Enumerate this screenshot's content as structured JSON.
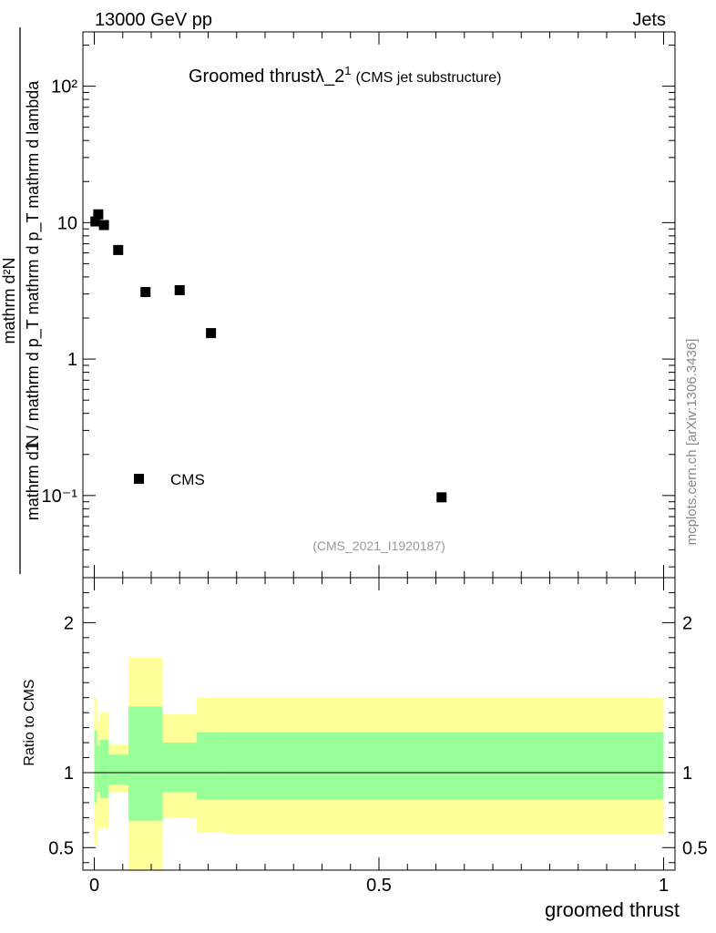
{
  "header": {
    "left": "13000 GeV pp",
    "right": "Jets"
  },
  "side_label": "mcplots.cern.ch [arXiv:1306.3436]",
  "chart_data": [
    {
      "type": "scatter",
      "title_main": "Groomed thrust",
      "title_symbol": "λ_2",
      "title_sup": "1",
      "title_sub": "(CMS jet substructure)",
      "analysis_id": "(CMS_2021_I1920187)",
      "ylabel_line1": "1",
      "ylabel_line2": "mathrm d N / mathrm d p_T mathrm d p_T mathrm d lambda",
      "ylabel_num": "mathrm d²N",
      "y_scale": "log",
      "ylim": [
        0.025,
        250
      ],
      "xlim": [
        -0.02,
        1.02
      ],
      "y_ticks": [
        "10⁻¹",
        "1",
        "10",
        "10²"
      ],
      "y_tick_values": [
        0.1,
        1,
        10,
        100
      ],
      "legend": "CMS",
      "legend_position": "bottom-left",
      "series": [
        {
          "name": "CMS",
          "x": [
            0.002,
            0.007,
            0.017,
            0.042,
            0.09,
            0.15,
            0.205,
            0.61
          ],
          "y": [
            10.2,
            11.5,
            9.6,
            6.3,
            3.1,
            3.2,
            1.55,
            0.097
          ]
        }
      ]
    },
    {
      "type": "area",
      "ylabel": "Ratio to CMS",
      "xlabel": "groomed thrust",
      "ylim": [
        0.35,
        2.3
      ],
      "xlim": [
        -0.02,
        1.02
      ],
      "x_ticks": [
        "0",
        "0.5",
        "1"
      ],
      "x_tick_values": [
        0,
        0.5,
        1
      ],
      "y_ticks": [
        "0.5",
        "1",
        "2"
      ],
      "y_tick_values": [
        0.5,
        1,
        2
      ],
      "reference_line": 1,
      "bands": [
        {
          "x0": 0.0,
          "x1": 0.005,
          "yellow": [
            0.52,
            1.5
          ],
          "green": [
            0.8,
            1.28
          ]
        },
        {
          "x0": 0.005,
          "x1": 0.01,
          "yellow": [
            0.62,
            1.34
          ],
          "green": [
            0.87,
            1.18
          ]
        },
        {
          "x0": 0.01,
          "x1": 0.025,
          "yellow": [
            0.63,
            1.4
          ],
          "green": [
            0.83,
            1.22
          ]
        },
        {
          "x0": 0.025,
          "x1": 0.06,
          "yellow": [
            0.87,
            1.19
          ],
          "green": [
            0.92,
            1.12
          ]
        },
        {
          "x0": 0.06,
          "x1": 0.12,
          "yellow": [
            0.3,
            1.77
          ],
          "green": [
            0.68,
            1.44
          ]
        },
        {
          "x0": 0.12,
          "x1": 0.18,
          "yellow": [
            0.7,
            1.39
          ],
          "green": [
            0.87,
            1.2
          ]
        },
        {
          "x0": 0.18,
          "x1": 0.23,
          "yellow": [
            0.6,
            1.5
          ],
          "green": [
            0.82,
            1.27
          ]
        },
        {
          "x0": 0.23,
          "x1": 1.0,
          "yellow": [
            0.59,
            1.5
          ],
          "green": [
            0.82,
            1.27
          ]
        }
      ]
    }
  ]
}
